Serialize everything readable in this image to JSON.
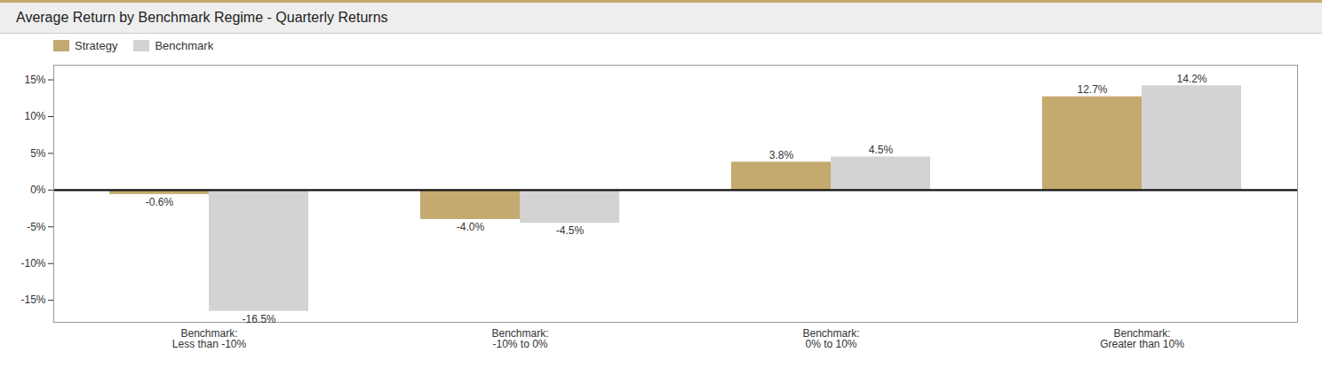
{
  "chart_data": {
    "type": "bar",
    "title": "Average Return by Benchmark Regime - Quarterly Returns",
    "categories": [
      "Benchmark:\nLess than -10%",
      "Benchmark:\n-10% to 0%",
      "Benchmark:\n0% to 10%",
      "Benchmark:\nGreater than 10%"
    ],
    "series": [
      {
        "name": "Strategy",
        "color": "#C4AA6E",
        "values": [
          -0.6,
          -4.0,
          3.8,
          12.7
        ],
        "value_labels": [
          "-0.6%",
          "-4.0%",
          "3.8%",
          "12.7%"
        ]
      },
      {
        "name": "Benchmark",
        "color": "#D3D3D3",
        "values": [
          -16.5,
          -4.5,
          4.5,
          14.2
        ],
        "value_labels": [
          "-16.5%",
          "-4.5%",
          "4.5%",
          "14.2%"
        ]
      }
    ],
    "ylim": [
      -18,
      17
    ],
    "yticks": [
      {
        "value": -15,
        "label": "-15%"
      },
      {
        "value": -10,
        "label": "-10%"
      },
      {
        "value": -5,
        "label": "-5%"
      },
      {
        "value": 0,
        "label": "0%"
      },
      {
        "value": 5,
        "label": "5%"
      },
      {
        "value": 10,
        "label": "10%"
      },
      {
        "value": 15,
        "label": "15%"
      }
    ],
    "grid": false,
    "legend": "upper left",
    "data_labels": true
  }
}
